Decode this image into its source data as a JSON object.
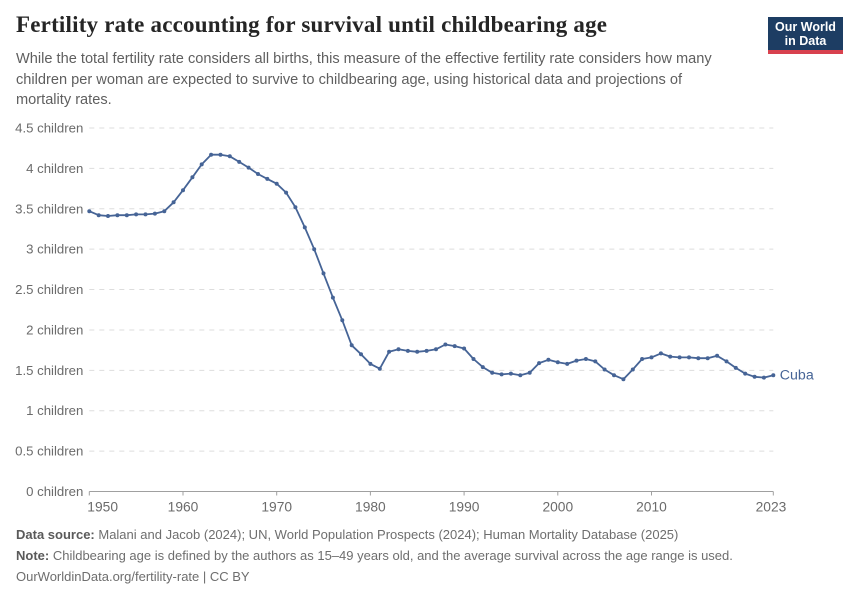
{
  "header": {
    "title": "Fertility rate accounting for survival until childbearing age",
    "subtitle": "While the total fertility rate considers all births, this measure of the effective fertility rate considers how many children per woman are expected to survive to childbearing age, using historical data and projections of mortality rates.",
    "logo": {
      "line1": "Our World",
      "line2": "in Data"
    }
  },
  "colors": {
    "line": "#466496",
    "series_label": "#466496",
    "grid": "#dddddd",
    "axis": "#a0a0a0",
    "tick_text": "#6b6b6b",
    "logo_bg": "#1d3d63",
    "logo_bar": "#d8414e"
  },
  "chart_data": {
    "type": "line",
    "title": "Fertility rate accounting for survival until childbearing age",
    "xlabel": "",
    "ylabel": "children",
    "xlim": [
      1950,
      2023
    ],
    "ylim": [
      0,
      4.5
    ],
    "grid": "horizontal-dashed",
    "legend_position": "end-of-line-label",
    "x_ticks": [
      1950,
      1960,
      1970,
      1980,
      1990,
      2000,
      2010,
      2023
    ],
    "y_ticks": [
      0,
      0.5,
      1,
      1.5,
      2,
      2.5,
      3,
      3.5,
      4,
      4.5
    ],
    "y_tick_labels": [
      "0 children",
      "0.5 children",
      "1 children",
      "1.5 children",
      "2 children",
      "2.5 children",
      "3 children",
      "3.5 children",
      "4 children",
      "4.5 children"
    ],
    "series": [
      {
        "name": "Cuba",
        "x": [
          1950,
          1951,
          1952,
          1953,
          1954,
          1955,
          1956,
          1957,
          1958,
          1959,
          1960,
          1961,
          1962,
          1963,
          1964,
          1965,
          1966,
          1967,
          1968,
          1969,
          1970,
          1971,
          1972,
          1973,
          1974,
          1975,
          1976,
          1977,
          1978,
          1979,
          1980,
          1981,
          1982,
          1983,
          1984,
          1985,
          1986,
          1987,
          1988,
          1989,
          1990,
          1991,
          1992,
          1993,
          1994,
          1995,
          1996,
          1997,
          1998,
          1999,
          2000,
          2001,
          2002,
          2003,
          2004,
          2005,
          2006,
          2007,
          2008,
          2009,
          2010,
          2011,
          2012,
          2013,
          2014,
          2015,
          2016,
          2017,
          2018,
          2019,
          2020,
          2021,
          2022,
          2023
        ],
        "values": [
          3.47,
          3.42,
          3.41,
          3.42,
          3.42,
          3.43,
          3.43,
          3.44,
          3.47,
          3.58,
          3.73,
          3.89,
          4.05,
          4.17,
          4.17,
          4.15,
          4.08,
          4.01,
          3.93,
          3.87,
          3.81,
          3.7,
          3.52,
          3.27,
          3.0,
          2.7,
          2.4,
          2.12,
          1.81,
          1.7,
          1.58,
          1.52,
          1.73,
          1.76,
          1.74,
          1.73,
          1.74,
          1.76,
          1.82,
          1.8,
          1.77,
          1.64,
          1.54,
          1.47,
          1.45,
          1.46,
          1.44,
          1.47,
          1.59,
          1.63,
          1.6,
          1.58,
          1.62,
          1.64,
          1.61,
          1.51,
          1.44,
          1.39,
          1.51,
          1.64,
          1.66,
          1.71,
          1.67,
          1.66,
          1.66,
          1.65,
          1.65,
          1.68,
          1.61,
          1.53,
          1.46,
          1.42,
          1.41,
          1.44
        ]
      }
    ]
  },
  "footer": {
    "datasource_label": "Data source:",
    "datasource_text": " Malani and Jacob (2024); UN, World Population Prospects (2024); Human Mortality Database (2025)",
    "note_label": "Note:",
    "note_text": " Childbearing age is defined by the authors as 15–49 years old, and the average survival across the age range is used.",
    "license_line": "OurWorldinData.org/fertility-rate | CC BY"
  }
}
